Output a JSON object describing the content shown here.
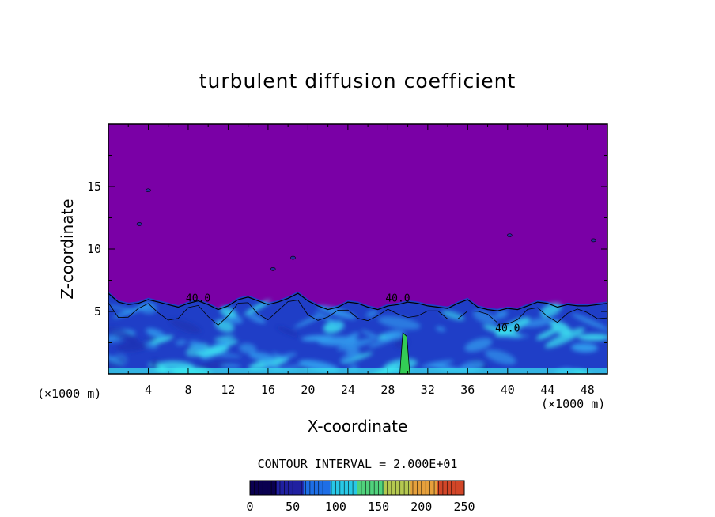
{
  "chart_data": {
    "type": "heatmap",
    "title": "turbulent diffusion coefficient",
    "xlabel": "X-coordinate",
    "ylabel": "Z-coordinate",
    "x_unit": "(×1000 m)",
    "y_unit": "(×1000 m)",
    "xlim": [
      0,
      50
    ],
    "ylim": [
      0,
      20
    ],
    "x_ticks": [
      4,
      8,
      12,
      16,
      20,
      24,
      28,
      32,
      36,
      40,
      44,
      48
    ],
    "y_ticks": [
      5,
      10,
      15
    ],
    "contour_interval_text": "CONTOUR INTERVAL = 2.000E+01",
    "contour_labels": [
      {
        "text": "40.0",
        "x": 9.0,
        "z": 5.8
      },
      {
        "text": "40.0",
        "x": 29.0,
        "z": 5.8
      },
      {
        "text": "40.0",
        "x": 40.0,
        "z": 3.4
      }
    ],
    "colorbar": {
      "min": 0,
      "max": 250,
      "tick_labels": [
        "0",
        "50",
        "100",
        "150",
        "200",
        "250"
      ],
      "colors": [
        "#0a0050",
        "#2020a0",
        "#1e6ee6",
        "#28c8e6",
        "#50d27c",
        "#b4c850",
        "#e6a03c",
        "#d24628"
      ]
    },
    "field_colors": {
      "upper": "#7a00a6",
      "mid": "#1f3ec7",
      "light": "#32a0f0",
      "cyan": "#3ce6f0",
      "green": "#33cc55"
    },
    "boundary_height_z": [
      6.6,
      5.9,
      5.7,
      5.8,
      6.1,
      5.9,
      5.7,
      5.5,
      5.8,
      6.0,
      5.7,
      5.3,
      5.6,
      6.1,
      6.3,
      6.0,
      5.7,
      5.9,
      6.2,
      6.6,
      6.0,
      5.6,
      5.3,
      5.5,
      5.9,
      5.8,
      5.5,
      5.3,
      5.6,
      5.7,
      5.9,
      5.8,
      5.6,
      5.5,
      5.4,
      5.8,
      6.1,
      5.5,
      5.3,
      5.2,
      5.4,
      5.3,
      5.6,
      5.9,
      5.8,
      5.5,
      5.7,
      5.6,
      5.6,
      5.7,
      5.8
    ],
    "scattered_patches": [
      {
        "x": 4.0,
        "z": 14.7
      },
      {
        "x": 18.5,
        "z": 9.3
      },
      {
        "x": 16.5,
        "z": 8.4
      },
      {
        "x": 40.2,
        "z": 11.1
      },
      {
        "x": 48.6,
        "z": 10.7
      },
      {
        "x": 3.1,
        "z": 12.0
      }
    ]
  }
}
